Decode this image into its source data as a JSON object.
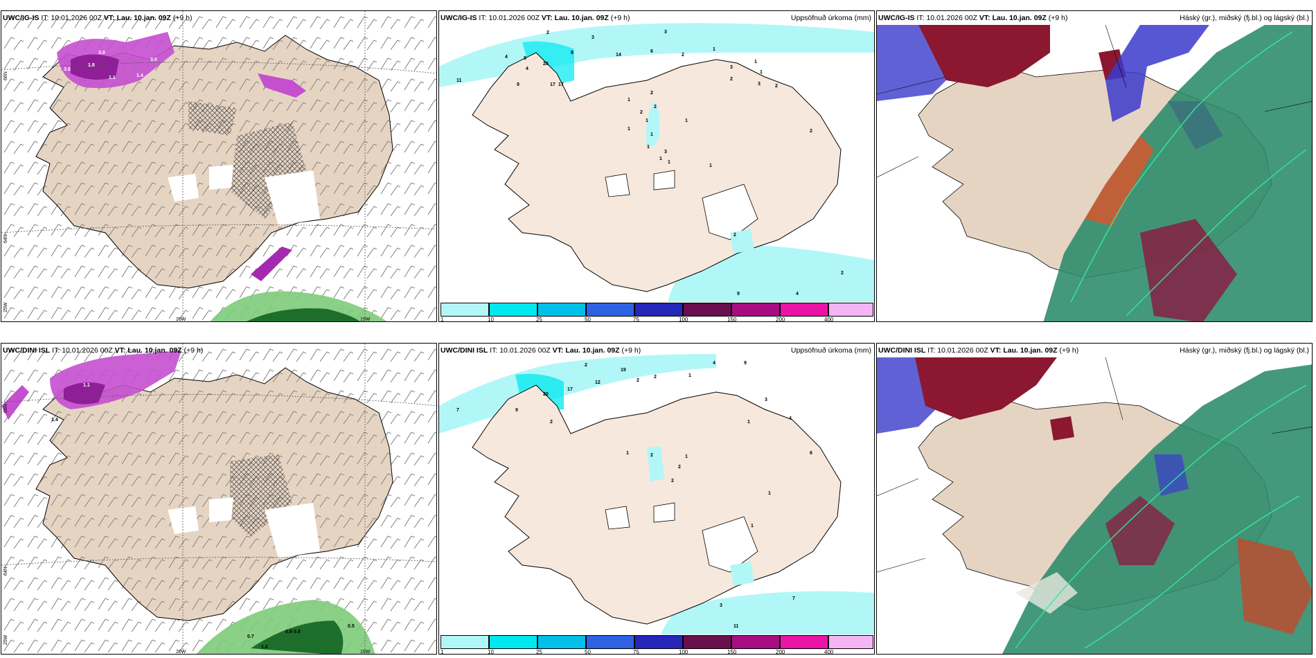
{
  "top_row": {
    "wind_panel": {
      "model": "UWC/IG-IS",
      "it_label": "IT:",
      "it_value": "10.01.2026 00Z",
      "vt_label": "VT:",
      "vt_value": "Lau. 10.jan. 09Z",
      "lead": "(+9 h)"
    },
    "precip_panel": {
      "model": "UWC/IG-IS",
      "it_label": "IT:",
      "it_value": "10.01.2026 00Z",
      "vt_label": "VT:",
      "vt_value": "Lau. 10.jan. 09Z",
      "lead": "(+9 h)",
      "field": "Uppsöfnuð úrkoma (mm)"
    },
    "cloud_panel": {
      "model": "UWC/IG-IS",
      "it_label": "IT:",
      "it_value": "10.01.2026 00Z",
      "vt_label": "VT:",
      "vt_value": "Lau. 10.jan. 09Z",
      "lead": "(+9 h)",
      "field": "Háský (gr.), miðský (fj.bl.) og lágský (bl.)"
    }
  },
  "bottom_row": {
    "wind_panel": {
      "model": "UWC/DINI ISL",
      "it_label": "IT:",
      "it_value": "10.01.2026 00Z",
      "vt_label": "VT:",
      "vt_value": "Lau. 10.jan. 09Z",
      "lead": "(+9 h)"
    },
    "precip_panel": {
      "model": "UWC/DINI ISL",
      "it_label": "IT:",
      "it_value": "10.01.2026 00Z",
      "vt_label": "VT:",
      "vt_value": "Lau. 10.jan. 09Z",
      "lead": "(+9 h)",
      "field": "Uppsöfnuð úrkoma (mm)"
    },
    "cloud_panel": {
      "model": "UWC/DINI ISL",
      "it_label": "IT:",
      "it_value": "10.01.2026 00Z",
      "vt_label": "VT:",
      "vt_value": "Lau. 10.jan. 09Z",
      "lead": "(+9 h)",
      "field": "Háský (gr.), miðský (fj.bl.) og lágský (bl.)"
    }
  },
  "axes": {
    "lon_20w": "20W",
    "lon_15w": "15W",
    "lat_66n": "66N",
    "lat_64n": "64N",
    "lat_25w": "25W"
  },
  "colorbar": {
    "ticks": [
      "1",
      "10",
      "25",
      "50",
      "75",
      "100",
      "150",
      "200",
      "400"
    ],
    "colors": [
      "#b2f7f8",
      "#00e8ef",
      "#00bfe9",
      "#2f62e3",
      "#2626b8",
      "#6a0f4e",
      "#a70c83",
      "#ea14a6",
      "#f3b5f3"
    ]
  },
  "precip_labels_top": [
    "2",
    "3",
    "4",
    "3",
    "8",
    "4",
    "28",
    "8",
    "9",
    "17",
    "17",
    "14",
    "6",
    "2",
    "1",
    "11",
    "3",
    "2",
    "1",
    "3",
    "2",
    "1",
    "2",
    "2",
    "2",
    "1",
    "1",
    "1",
    "1",
    "1",
    "3",
    "1",
    "2",
    "1",
    "1",
    "1",
    "2",
    "9",
    "4",
    "2"
  ],
  "precip_labels_bottom": [
    "2",
    "19",
    "12",
    "2",
    "2",
    "1",
    "4",
    "9",
    "17",
    "20",
    "9",
    "7",
    "2",
    "1",
    "2",
    "1",
    "3",
    "2",
    "4",
    "1",
    "2",
    "1",
    "1",
    "3",
    "7",
    "11",
    "6"
  ],
  "wind_labels_top": [
    "3.0",
    "1.8",
    "3.0",
    "1.1",
    "1.4",
    "3.0",
    "0.5"
  ],
  "wind_labels_bottom": [
    "1.1",
    "1.4",
    "0.7",
    "0.9",
    "0.8",
    "0.5",
    "1.2"
  ]
}
